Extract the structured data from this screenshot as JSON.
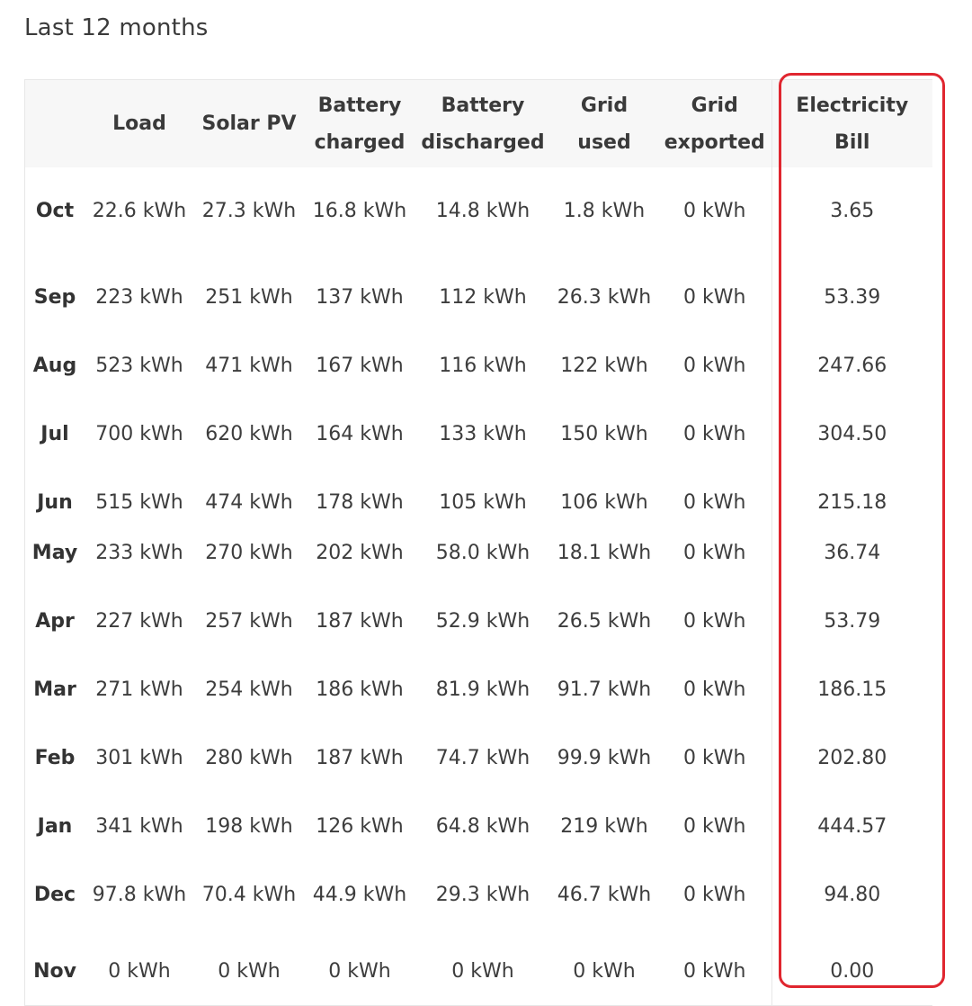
{
  "heading": "Last 12 months",
  "columns": [
    "",
    "Load",
    "Solar PV",
    "Battery charged",
    "Battery discharged",
    "Grid used",
    "Grid exported",
    "Electricity Bill"
  ],
  "rows": [
    {
      "month": "Oct",
      "load": "22.6 kWh",
      "solar": "27.3 kWh",
      "bat_ch": "16.8 kWh",
      "bat_dis": "14.8 kWh",
      "grid_used": "1.8 kWh",
      "grid_exp": "0 kWh",
      "bill": "3.65"
    },
    {
      "month": "Sep",
      "load": "223 kWh",
      "solar": "251 kWh",
      "bat_ch": "137 kWh",
      "bat_dis": "112 kWh",
      "grid_used": "26.3 kWh",
      "grid_exp": "0 kWh",
      "bill": "53.39"
    },
    {
      "month": "Aug",
      "load": "523 kWh",
      "solar": "471 kWh",
      "bat_ch": "167 kWh",
      "bat_dis": "116 kWh",
      "grid_used": "122 kWh",
      "grid_exp": "0 kWh",
      "bill": "247.66"
    },
    {
      "month": "Jul",
      "load": "700 kWh",
      "solar": "620 kWh",
      "bat_ch": "164 kWh",
      "bat_dis": "133 kWh",
      "grid_used": "150 kWh",
      "grid_exp": "0 kWh",
      "bill": "304.50"
    },
    {
      "month": "Jun",
      "load": "515 kWh",
      "solar": "474 kWh",
      "bat_ch": "178 kWh",
      "bat_dis": "105 kWh",
      "grid_used": "106 kWh",
      "grid_exp": "0 kWh",
      "bill": "215.18"
    },
    {
      "month": "May",
      "load": "233 kWh",
      "solar": "270 kWh",
      "bat_ch": "202 kWh",
      "bat_dis": "58.0 kWh",
      "grid_used": "18.1 kWh",
      "grid_exp": "0 kWh",
      "bill": "36.74"
    },
    {
      "month": "Apr",
      "load": "227 kWh",
      "solar": "257 kWh",
      "bat_ch": "187 kWh",
      "bat_dis": "52.9 kWh",
      "grid_used": "26.5 kWh",
      "grid_exp": "0 kWh",
      "bill": "53.79"
    },
    {
      "month": "Mar",
      "load": "271 kWh",
      "solar": "254 kWh",
      "bat_ch": "186 kWh",
      "bat_dis": "81.9 kWh",
      "grid_used": "91.7 kWh",
      "grid_exp": "0 kWh",
      "bill": "186.15"
    },
    {
      "month": "Feb",
      "load": "301 kWh",
      "solar": "280 kWh",
      "bat_ch": "187 kWh",
      "bat_dis": "74.7 kWh",
      "grid_used": "99.9 kWh",
      "grid_exp": "0 kWh",
      "bill": "202.80"
    },
    {
      "month": "Jan",
      "load": "341 kWh",
      "solar": "198 kWh",
      "bat_ch": "126 kWh",
      "bat_dis": "64.8 kWh",
      "grid_used": "219 kWh",
      "grid_exp": "0 kWh",
      "bill": "444.57"
    },
    {
      "month": "Dec",
      "load": "97.8 kWh",
      "solar": "70.4 kWh",
      "bat_ch": "44.9 kWh",
      "bat_dis": "29.3 kWh",
      "grid_used": "46.7 kWh",
      "grid_exp": "0 kWh",
      "bill": "94.80"
    },
    {
      "month": "Nov",
      "load": "0 kWh",
      "solar": "0 kWh",
      "bat_ch": "0 kWh",
      "bat_dis": "0 kWh",
      "grid_used": "0 kWh",
      "grid_exp": "0 kWh",
      "bill": "0.00"
    }
  ],
  "colors": {
    "highlight": "#e0262f",
    "header_bg": "#f7f7f7",
    "text": "#3a3a3a"
  }
}
